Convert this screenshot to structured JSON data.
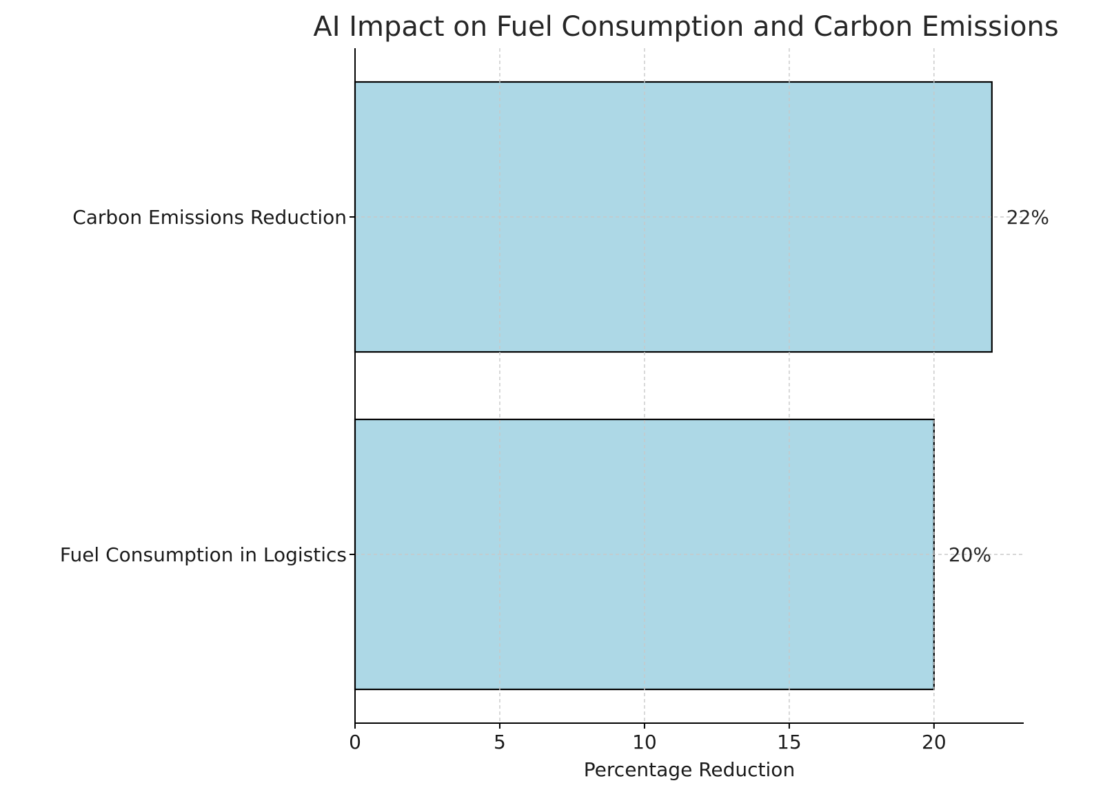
{
  "chart_data": {
    "type": "bar",
    "orientation": "horizontal",
    "title": "AI Impact on Fuel Consumption and Carbon Emissions",
    "xlabel": "Percentage Reduction",
    "ylabel": "",
    "categories": [
      "Fuel Consumption in Logistics",
      "Carbon Emissions Reduction"
    ],
    "values": [
      20,
      22
    ],
    "data_labels": [
      "20%",
      "22%"
    ],
    "xticks": [
      0,
      5,
      10,
      15,
      20
    ],
    "xtick_labels": [
      "0",
      "5",
      "10",
      "15",
      "20"
    ],
    "xlim": [
      0,
      23.1
    ],
    "grid": true,
    "bar_color": "#add8e6",
    "bar_edge_color": "#000000"
  }
}
